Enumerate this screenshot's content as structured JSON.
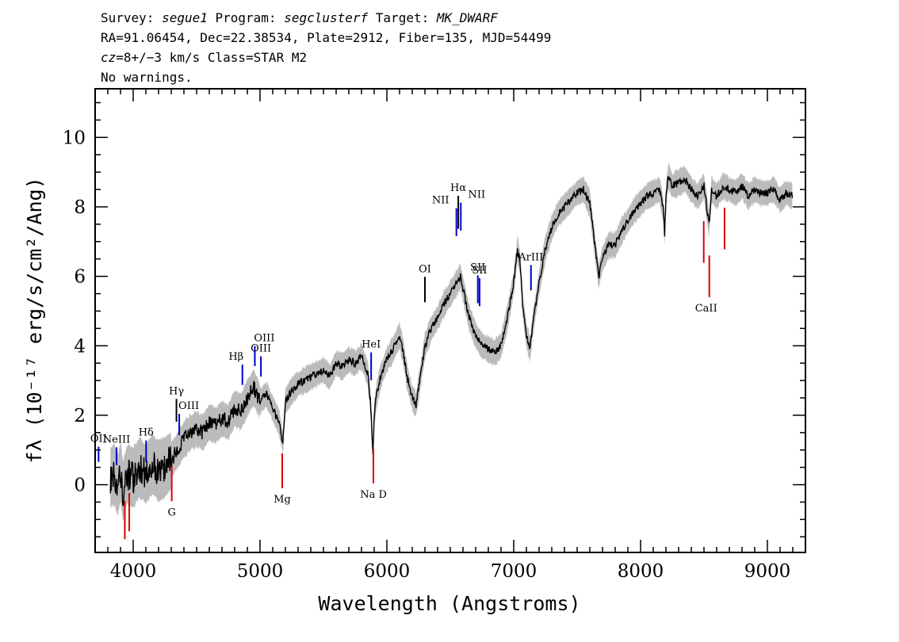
{
  "header": {
    "line1": {
      "survey_label": "Survey: ",
      "survey": "segue1",
      "program_label": " Program: ",
      "program": "segclusterf",
      "target_label": " Target: ",
      "target": "MK_DWARF"
    },
    "line2": "RA=91.06454, Dec=22.38534, Plate=2912, Fiber=135, MJD=54499",
    "line3": {
      "cz_label": "cz",
      "cz_value": "=8+/−3 km/s",
      "class_text": " Class=STAR M2"
    },
    "line4": "No warnings."
  },
  "chart_data": {
    "type": "line",
    "xlabel": "Wavelength (Angstroms)",
    "ylabel": "fλ (10⁻¹⁷ erg/s/cm²/Ang)",
    "xlim": [
      3700,
      9300
    ],
    "ylim": [
      -1.95,
      11.4
    ],
    "x_ticks": [
      4000,
      5000,
      6000,
      7000,
      8000,
      9000
    ],
    "x_tick_labels": [
      "4000",
      "5000",
      "6000",
      "7000",
      "8000",
      "9000"
    ],
    "y_ticks": [
      0,
      2,
      4,
      6,
      8,
      10
    ],
    "y_tick_labels": [
      "0",
      "2",
      "4",
      "6",
      "8",
      "10"
    ],
    "grid": false,
    "series": [
      {
        "role": "flux",
        "color": "#000000",
        "x": [
          3820,
          3850,
          3880,
          3900,
          3920,
          3950,
          4000,
          4050,
          4100,
          4150,
          4200,
          4250,
          4300,
          4350,
          4400,
          4450,
          4500,
          4550,
          4600,
          4650,
          4700,
          4750,
          4800,
          4850,
          4900,
          4950,
          5000,
          5050,
          5100,
          5150,
          5180,
          5200,
          5250,
          5300,
          5350,
          5400,
          5450,
          5500,
          5550,
          5600,
          5650,
          5700,
          5750,
          5800,
          5850,
          5870,
          5880,
          5890,
          5900,
          5920,
          5950,
          6000,
          6050,
          6100,
          6130,
          6160,
          6200,
          6230,
          6260,
          6300,
          6350,
          6400,
          6450,
          6500,
          6550,
          6580,
          6620,
          6650,
          6700,
          6750,
          6800,
          6850,
          6900,
          6950,
          7000,
          7030,
          7050,
          7070,
          7100,
          7130,
          7150,
          7200,
          7250,
          7300,
          7350,
          7400,
          7450,
          7500,
          7550,
          7600,
          7620,
          7650,
          7670,
          7700,
          7750,
          7800,
          7850,
          7900,
          7950,
          8000,
          8050,
          8100,
          8150,
          8180,
          8190,
          8200,
          8220,
          8250,
          8300,
          8350,
          8400,
          8450,
          8500,
          8540,
          8560,
          8600,
          8650,
          8700,
          8750,
          8800,
          8850,
          8900,
          8950,
          9000,
          9050,
          9100,
          9150,
          9200
        ],
        "y": [
          0.2,
          0.3,
          0.0,
          0.4,
          -0.2,
          0.3,
          0.2,
          0.5,
          0.3,
          0.6,
          0.4,
          0.5,
          0.7,
          1.0,
          1.3,
          1.5,
          1.6,
          1.5,
          1.8,
          1.7,
          1.9,
          1.8,
          2.2,
          2.1,
          2.5,
          2.8,
          2.4,
          2.6,
          2.2,
          1.8,
          1.2,
          2.4,
          2.7,
          2.9,
          3.0,
          3.1,
          3.2,
          3.3,
          3.1,
          3.5,
          3.4,
          3.6,
          3.5,
          3.7,
          3.2,
          2.4,
          1.7,
          0.9,
          2.0,
          2.6,
          3.1,
          3.6,
          3.9,
          4.3,
          3.8,
          3.1,
          2.5,
          2.3,
          3.0,
          4.0,
          4.5,
          4.8,
          5.2,
          5.5,
          5.8,
          6.0,
          5.3,
          4.8,
          4.3,
          4.0,
          3.9,
          3.8,
          4.0,
          4.8,
          5.8,
          6.8,
          6.4,
          5.2,
          4.3,
          3.9,
          4.6,
          5.8,
          6.8,
          7.4,
          7.8,
          8.0,
          8.2,
          8.4,
          8.5,
          8.1,
          7.5,
          6.6,
          6.0,
          6.5,
          6.9,
          6.9,
          7.3,
          7.6,
          7.9,
          8.1,
          8.3,
          8.4,
          8.5,
          7.9,
          7.2,
          8.3,
          8.9,
          8.6,
          8.7,
          8.8,
          8.5,
          8.3,
          8.6,
          7.5,
          8.5,
          8.3,
          8.6,
          8.5,
          8.4,
          8.6,
          8.3,
          8.5,
          8.4,
          8.4,
          8.5,
          8.2,
          8.4,
          8.3
        ]
      }
    ],
    "emission_lines": [
      {
        "label": "OII",
        "x": 3727
      },
      {
        "label": "NeIII",
        "x": 3869
      },
      {
        "label": "Hδ",
        "x": 4102
      },
      {
        "label": "Hγ",
        "x": 4341
      },
      {
        "label": "OIII",
        "x": 4363
      },
      {
        "label": "Hβ",
        "x": 4861
      },
      {
        "label": "OIII",
        "x": 4959
      },
      {
        "label": "OIII",
        "x": 5007
      },
      {
        "label": "HeI",
        "x": 5876
      },
      {
        "label": "OI",
        "x": 6300
      },
      {
        "label": "NII",
        "x": 6548
      },
      {
        "label": "Hα",
        "x": 6563
      },
      {
        "label": "NII",
        "x": 6583
      },
      {
        "label": "SII",
        "x": 6717
      },
      {
        "label": "SII",
        "x": 6731
      },
      {
        "label": "ArIII",
        "x": 7136
      }
    ],
    "absorption_lines": [
      {
        "label": "",
        "x": 3934
      },
      {
        "label": "",
        "x": 3969
      },
      {
        "label": "G",
        "x": 4304
      },
      {
        "label": "Mg",
        "x": 5175
      },
      {
        "label": "Na D",
        "x": 5894
      },
      {
        "label": "",
        "x": 8498
      },
      {
        "label": "CaII",
        "x": 8542
      },
      {
        "label": "",
        "x": 8662
      }
    ],
    "colors": {
      "flux": "#000000",
      "error_band": "#bbbbbb",
      "emission": "#0000cc",
      "absorption": "#dd0000",
      "neutral": "#000000"
    }
  }
}
